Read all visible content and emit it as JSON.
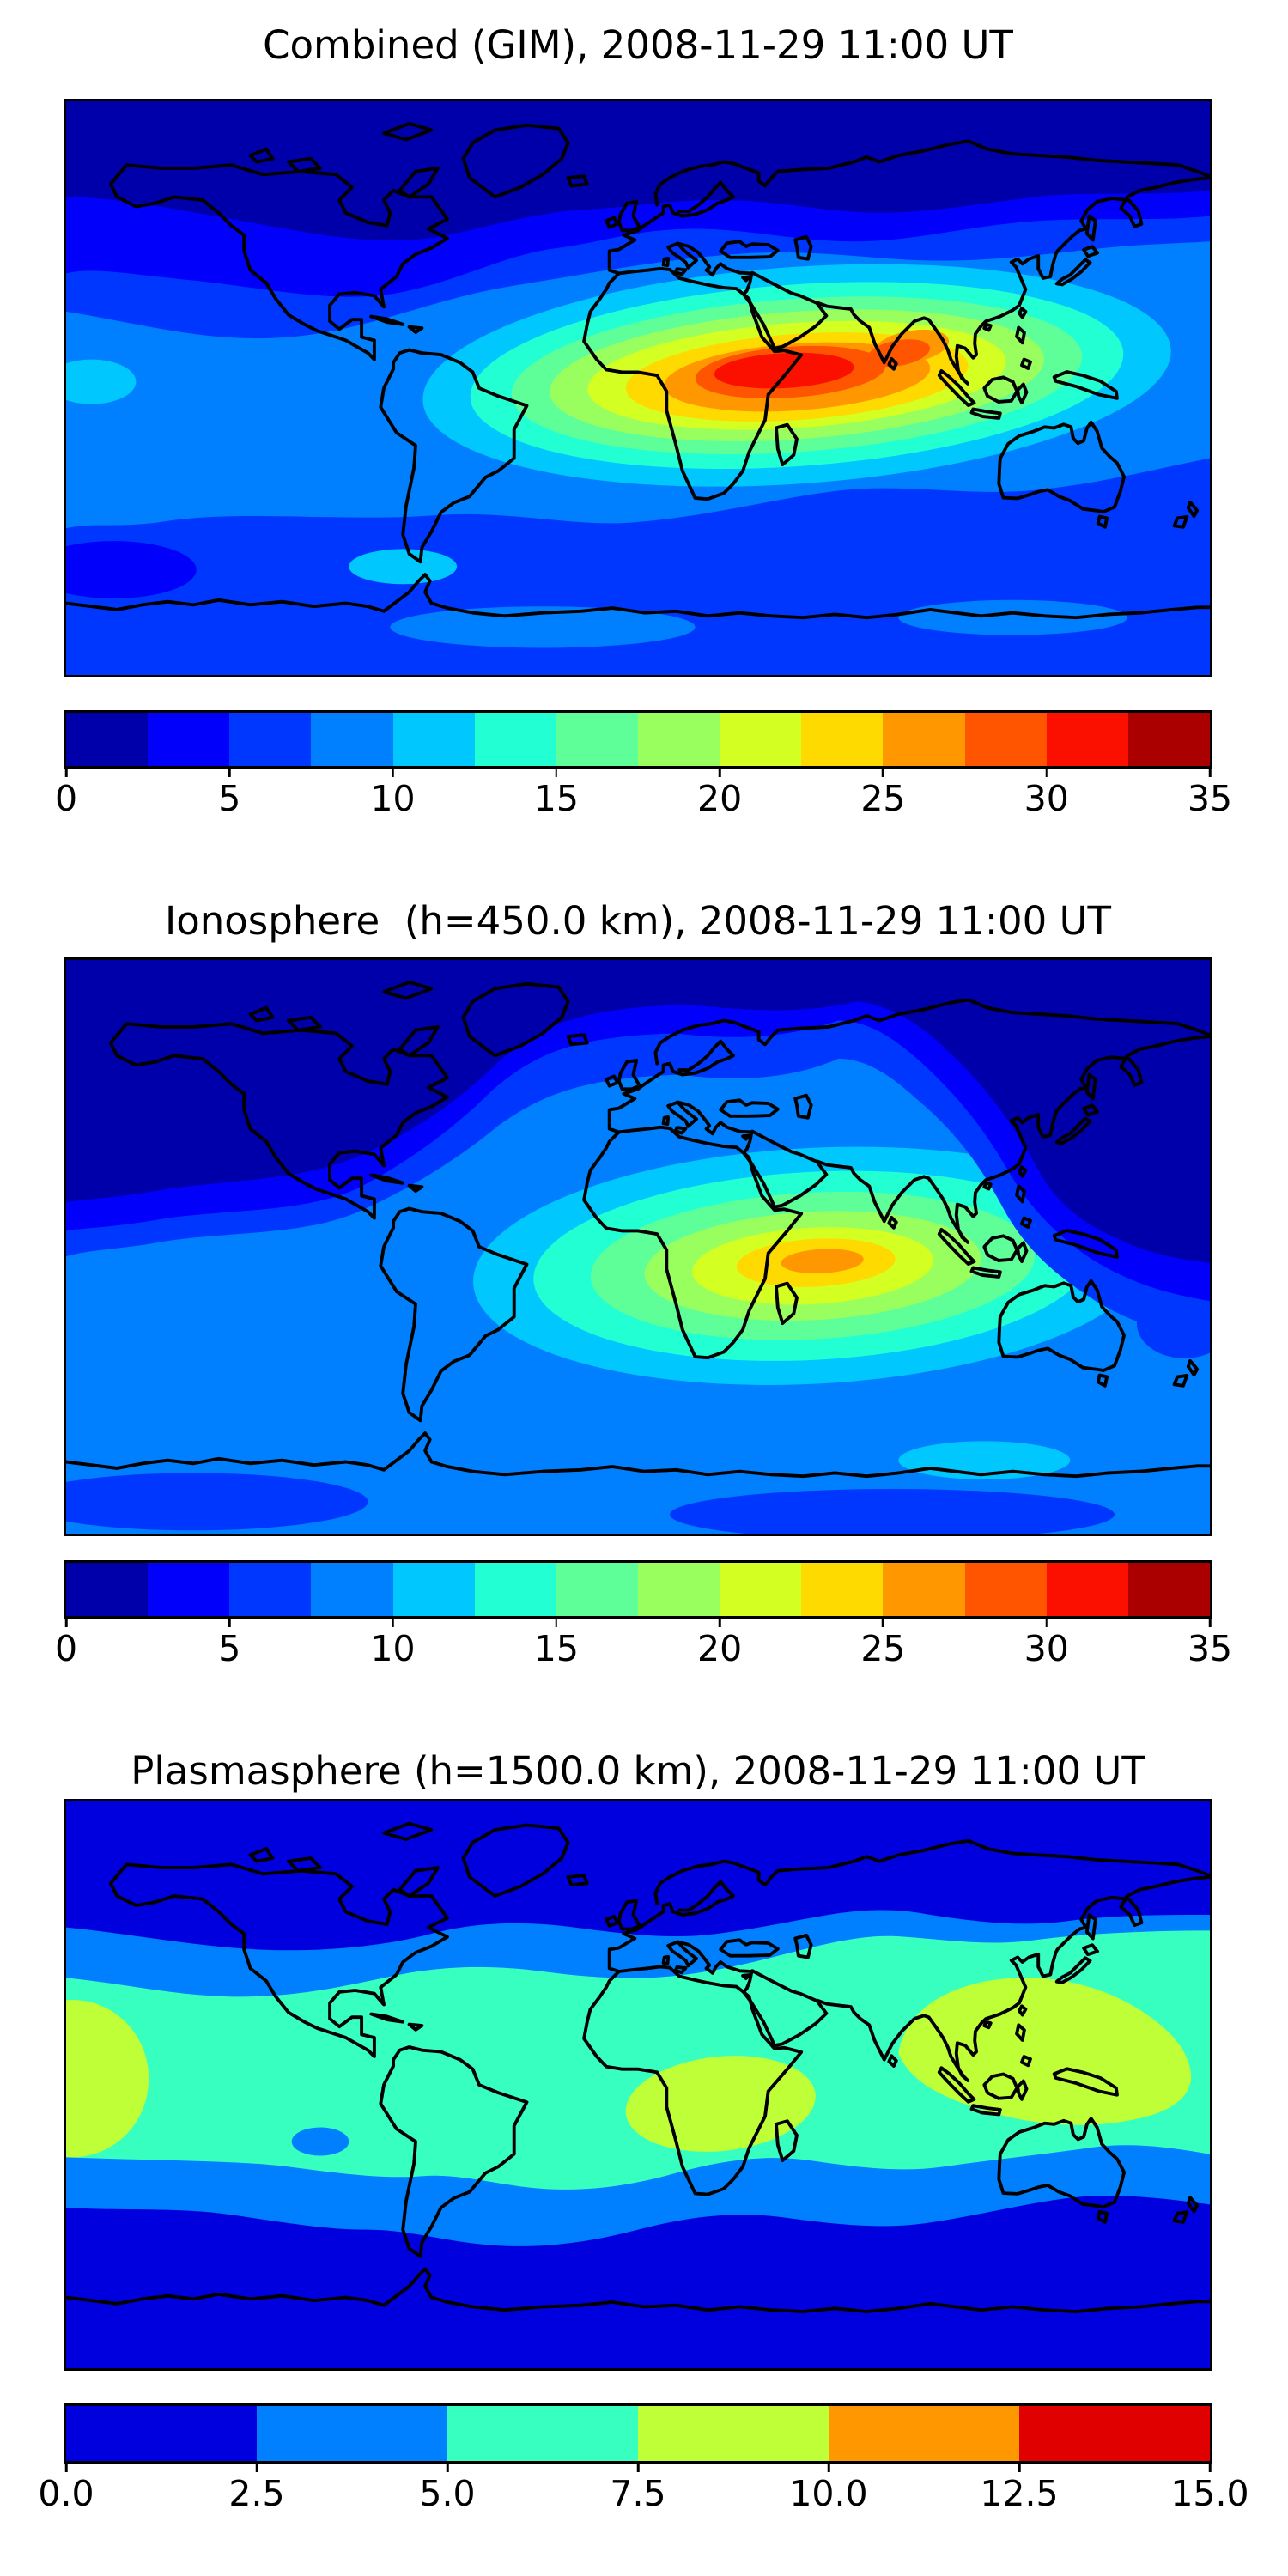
{
  "figure": {
    "background": "#ffffff",
    "border_color": "#000000",
    "coastline_color": "#000000"
  },
  "palettes": {
    "jet14": [
      "#0000AA",
      "#0000FB",
      "#0037FF",
      "#0080FF",
      "#00C8FF",
      "#22FFD3",
      "#5EFF99",
      "#99FF5E",
      "#D3FF22",
      "#FFDA00",
      "#FF9800",
      "#FF5400",
      "#FB1000",
      "#AA0000"
    ],
    "jet6": [
      "#0000DF",
      "#0080FF",
      "#37FFC0",
      "#BFFF37",
      "#FF9800",
      "#E00000"
    ]
  },
  "panels": [
    {
      "title": "Combined (GIM), 2008-11-29 11:00 UT",
      "colorbar": {
        "palette": "jet14",
        "vmin": 0,
        "vmax": 35,
        "ticks": [
          "0",
          "5",
          "10",
          "15",
          "20",
          "25",
          "30",
          "35"
        ]
      }
    },
    {
      "title": "Ionosphere  (h=450.0 km), 2008-11-29 11:00 UT",
      "colorbar": {
        "palette": "jet14",
        "vmin": 0,
        "vmax": 35,
        "ticks": [
          "0",
          "5",
          "10",
          "15",
          "20",
          "25",
          "30",
          "35"
        ]
      }
    },
    {
      "title": "Plasmasphere (h=1500.0 km), 2008-11-29 11:00 UT",
      "colorbar": {
        "palette": "jet6",
        "vmin": 0,
        "vmax": 15,
        "ticks": [
          "0.0",
          "2.5",
          "5.0",
          "7.5",
          "10.0",
          "12.5",
          "15.0"
        ]
      }
    }
  ],
  "chart_data": [
    {
      "type": "heatmap",
      "subtype": "filled contour map of the world (equirectangular, lon -180..180, lat -90..90)",
      "title": "Combined (GIM), 2008-11-29 11:00 UT",
      "colormap": "jet, 14 discrete bands",
      "levels": [
        0,
        2.5,
        5,
        7.5,
        10,
        12.5,
        15,
        17.5,
        20,
        22.5,
        25,
        27.5,
        30,
        32.5,
        35
      ],
      "colorbar_ticks": [
        0,
        5,
        10,
        15,
        20,
        25,
        30,
        35
      ],
      "legend_position": "horizontal colorbar below map",
      "grid": false,
      "max_region": {
        "value_range": [
          30,
          32.5
        ],
        "lon": 45,
        "lat": 5,
        "note": "red core elongated E-W over central/east Africa, Arabia and Arabian Sea (lon ~15E-80E)"
      },
      "min_region": {
        "value_range": [
          0,
          2.5
        ],
        "note": "dark navy band across Arctic latitudes (lat > ~55N)"
      },
      "pattern": "concentric jet-colored rings (orange, gold, yellow-green, green, turquoise, cyan, blues) decreasing outward from the African/Indian hotspot; values 5-10 over southern oceans; small 0-2.5 patch in far SE Pacific near 55S"
    },
    {
      "type": "heatmap",
      "subtype": "filled contour map of the world (equirectangular, lon -180..180, lat -90..90)",
      "title": "Ionosphere  (h=450.0 km), 2008-11-29 11:00 UT",
      "colormap": "jet, 14 discrete bands",
      "levels": [
        0,
        2.5,
        5,
        7.5,
        10,
        12.5,
        15,
        17.5,
        20,
        22.5,
        25,
        27.5,
        30,
        32.5,
        35
      ],
      "colorbar_ticks": [
        0,
        5,
        10,
        15,
        20,
        25,
        30,
        35
      ],
      "legend_position": "horizontal colorbar below map",
      "grid": false,
      "max_region": {
        "value_range": [
          25,
          27.5
        ],
        "lon": 55,
        "lat": -7,
        "note": "orange core over the Indian Ocean east of Africa / near Madagascar"
      },
      "min_region": {
        "value_range": [
          0,
          2.5
        ],
        "note": "dark navy over North America, North Pacific, Arctic and NE Asia / west Pacific night side"
      },
      "pattern": "rings gold, yellow-green, green, turquoise, cyan around the Indian-Ocean hotspot; ~7.5-10 over southern mid-latitude oceans; darker 5-7.5 patches near Antarctica and east of New Zealand"
    },
    {
      "type": "heatmap",
      "subtype": "filled contour map of the world (equirectangular, lon -180..180, lat -90..90)",
      "title": "Plasmasphere (h=1500.0 km), 2008-11-29 11:00 UT",
      "colormap": "jet, 6 discrete bands",
      "levels": [
        0,
        2.5,
        5,
        7.5,
        10,
        12.5,
        15
      ],
      "colorbar_ticks": [
        0.0,
        2.5,
        5.0,
        7.5,
        10.0,
        12.5,
        15.0
      ],
      "legend_position": "horizontal colorbar below map",
      "grid": false,
      "max_region": {
        "value_range": [
          7.5,
          10
        ],
        "note": "yellow-green patches: SE Asia / west Pacific (lon ~85E-175E), central Africa, and far east Pacific at the left edge, all near the equator"
      },
      "min_region": {
        "value_range": [
          0,
          2.5
        ],
        "note": "dark blue poleward of ~50N and ~35S"
      },
      "pattern": "latitude-banded: dark blue polar bands, 2.5-5 transition bands, broad 5-7.5 turquoise equatorial belt with 7.5-10 patches; small 2.5-5 oval in SE Pacific (~105W, 18S)"
    }
  ]
}
